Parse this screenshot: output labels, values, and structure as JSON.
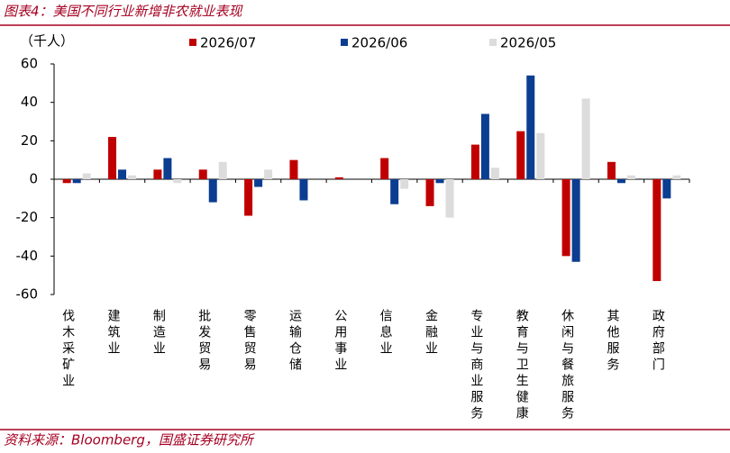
{
  "chart_data": {
    "type": "bar",
    "title": "图表4：美国不同行业新增非农就业表现",
    "y_label": "（千人）",
    "source": "资料来源：Bloomberg，国盛证券研究所",
    "categories": [
      "伐木采矿业",
      "建筑业",
      "制造业",
      "批发贸易",
      "零售贸易",
      "运输仓储",
      "公用事业",
      "信息业",
      "金融业",
      "专业与商业服务",
      "教育与卫生健康",
      "休闲与餐旅服务",
      "其他服务",
      "政府部门"
    ],
    "series": [
      {
        "name": "2026/07",
        "color": "#c00000",
        "values": [
          -2,
          22,
          5,
          5,
          -19,
          10,
          1,
          11,
          -14,
          18,
          25,
          -40,
          9,
          -53
        ]
      },
      {
        "name": "2026/06",
        "color": "#0b3d91",
        "values": [
          -2,
          5,
          11,
          -12,
          -4,
          -11,
          0,
          -13,
          -2,
          34,
          54,
          -43,
          -2,
          -10
        ]
      },
      {
        "name": "2026/05",
        "color": "#dcdcdc",
        "values": [
          3,
          2,
          -2,
          9,
          5,
          0,
          0,
          -5,
          -20,
          6,
          24,
          42,
          2,
          2
        ]
      }
    ],
    "ylim": [
      -60,
      60
    ],
    "yticks": [
      -60,
      -40,
      -20,
      0,
      20,
      40,
      60
    ],
    "grid": false
  }
}
